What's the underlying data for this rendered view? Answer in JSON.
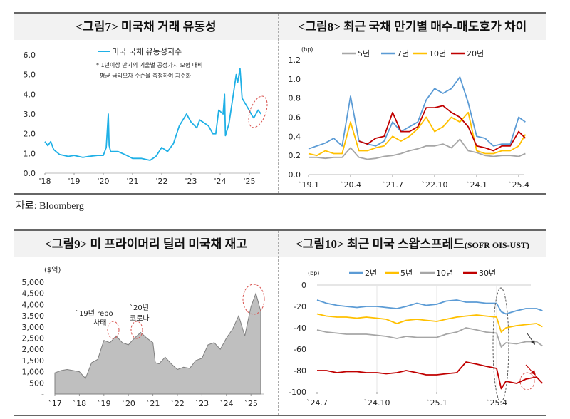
{
  "source": "자료: Bloomberg",
  "chart_data": [
    {
      "id": "fig7",
      "type": "line",
      "title": "<그림7> 미국채 거래 유동성",
      "xlabel": "",
      "ylabel": "",
      "ylim": [
        0,
        6
      ],
      "yticks": [
        "0.0",
        "1.0",
        "2.0",
        "3.0",
        "4.0",
        "5.0",
        "6.0"
      ],
      "xticks": [
        "'18",
        "'19",
        "'20",
        "'21",
        "'22",
        "'23",
        "'24",
        "'25"
      ],
      "legend": "top-center",
      "note": [
        "* 1년이상 만기의 기울별 공정가치 모형 대비",
        "평균 금리오차 수준을 측정하여 지수화"
      ],
      "series": [
        {
          "name": "미국 국채 유동성지수",
          "color": "#1fb0e6",
          "x": [
            2018.0,
            2018.1,
            2018.2,
            2018.3,
            2018.5,
            2018.8,
            2019.0,
            2019.3,
            2019.5,
            2019.8,
            2020.0,
            2020.1,
            2020.17,
            2020.2,
            2020.25,
            2020.5,
            2020.8,
            2021.0,
            2021.3,
            2021.6,
            2021.8,
            2022.0,
            2022.2,
            2022.4,
            2022.6,
            2022.85,
            2023.0,
            2023.2,
            2023.3,
            2023.6,
            2023.75,
            2023.85,
            2023.95,
            2024.1,
            2024.15,
            2024.18,
            2024.3,
            2024.45,
            2024.55,
            2024.6,
            2024.68,
            2024.75,
            2024.95,
            2025.1,
            2025.15,
            2025.3,
            2025.4
          ],
          "y": [
            1.6,
            1.4,
            1.6,
            1.2,
            0.95,
            0.85,
            0.9,
            0.8,
            0.85,
            0.9,
            0.9,
            1.3,
            3.0,
            1.4,
            1.1,
            1.1,
            0.9,
            0.75,
            0.75,
            0.65,
            0.85,
            1.3,
            1.1,
            1.5,
            2.4,
            3.0,
            2.6,
            2.3,
            2.7,
            2.4,
            2.0,
            2.0,
            3.2,
            3.0,
            4.0,
            1.9,
            2.5,
            4.0,
            5.0,
            4.6,
            5.3,
            3.8,
            3.3,
            2.9,
            2.8,
            3.2,
            3.0
          ]
        }
      ]
    },
    {
      "id": "fig8",
      "type": "line",
      "title": "<그림8> 최근 국채 만기별 매수-매도호가 차이",
      "unit": "(bp)",
      "ylim": [
        0,
        1.2
      ],
      "yticks": [
        "0.0",
        "0.2",
        "0.4",
        "0.6",
        "0.8",
        "1.0",
        "1.2"
      ],
      "xticks": [
        "`19.1",
        "`20.4",
        "`21.7",
        "`22.10",
        "`24.1",
        "`25.4"
      ],
      "legend": "top",
      "x": [
        2019.0,
        2019.25,
        2019.5,
        2019.75,
        2020.0,
        2020.25,
        2020.5,
        2020.75,
        2021.0,
        2021.25,
        2021.5,
        2021.75,
        2022.0,
        2022.25,
        2022.5,
        2022.75,
        2023.0,
        2023.25,
        2023.5,
        2023.75,
        2024.0,
        2024.25,
        2024.5,
        2024.75,
        2025.0,
        2025.25,
        2025.45
      ],
      "series": [
        {
          "name": "5년",
          "color": "#a6a6a6",
          "y": [
            0.18,
            0.18,
            0.17,
            0.18,
            0.18,
            0.28,
            0.18,
            0.16,
            0.17,
            0.19,
            0.2,
            0.22,
            0.25,
            0.27,
            0.3,
            0.3,
            0.32,
            0.28,
            0.37,
            0.25,
            0.23,
            0.2,
            0.19,
            0.2,
            0.2,
            0.19,
            0.22
          ]
        },
        {
          "name": "7년",
          "color": "#5b9bd5",
          "y": [
            0.27,
            0.3,
            0.33,
            0.38,
            0.3,
            0.82,
            0.35,
            0.32,
            0.3,
            0.35,
            0.55,
            0.45,
            0.5,
            0.55,
            0.78,
            0.9,
            0.85,
            0.9,
            1.02,
            0.75,
            0.4,
            0.38,
            0.3,
            0.32,
            0.32,
            0.6,
            0.55
          ]
        },
        {
          "name": "10년",
          "color": "#ffc000",
          "y": [
            0.22,
            0.2,
            0.25,
            0.22,
            0.22,
            0.55,
            0.25,
            0.25,
            0.28,
            0.3,
            0.4,
            0.35,
            0.4,
            0.48,
            0.6,
            0.45,
            0.5,
            0.6,
            0.55,
            0.65,
            0.25,
            0.22,
            0.22,
            0.25,
            0.25,
            0.3,
            0.42
          ]
        },
        {
          "name": "20년",
          "color": "#c00000",
          "y": [
            null,
            null,
            null,
            null,
            null,
            null,
            0.35,
            0.32,
            0.38,
            0.4,
            0.65,
            0.45,
            0.45,
            0.5,
            0.7,
            0.7,
            0.72,
            0.65,
            0.6,
            0.5,
            0.3,
            0.28,
            0.25,
            0.3,
            0.3,
            0.45,
            0.38
          ]
        }
      ]
    },
    {
      "id": "fig9",
      "type": "area",
      "title": "<그림9> 미 프라이머리 딜러 미국채 재고",
      "unit": "($억)",
      "ylim": [
        0,
        5000
      ],
      "yticks": [
        "-",
        "500",
        "1,000",
        "1,500",
        "2,000",
        "2,500",
        "3,000",
        "3,500",
        "4,000",
        "4,500",
        "5,000"
      ],
      "xticks": [
        "`17",
        "`18",
        "`19",
        "`20",
        "`21",
        "`22",
        "`23",
        "`24",
        "`25"
      ],
      "annotations": [
        "`19년 repo",
        "사태",
        "`20년",
        "코로나"
      ],
      "series": [
        {
          "color": "#a6a6a6",
          "x": [
            2017.0,
            2017.25,
            2017.5,
            2017.75,
            2018.0,
            2018.25,
            2018.5,
            2018.75,
            2019.0,
            2019.25,
            2019.5,
            2019.75,
            2020.0,
            2020.25,
            2020.5,
            2020.75,
            2021.0,
            2021.1,
            2021.25,
            2021.5,
            2021.75,
            2022.0,
            2022.25,
            2022.5,
            2022.75,
            2023.0,
            2023.25,
            2023.5,
            2023.75,
            2024.0,
            2024.25,
            2024.5,
            2024.75,
            2025.0,
            2025.2,
            2025.4
          ],
          "y": [
            950,
            1050,
            1100,
            1050,
            1000,
            700,
            1400,
            1550,
            2400,
            2300,
            2600,
            2300,
            2200,
            2500,
            2750,
            2500,
            2300,
            1400,
            1350,
            1650,
            1350,
            1100,
            1200,
            1150,
            1500,
            1600,
            2200,
            2300,
            2000,
            2500,
            2900,
            3500,
            2600,
            3900,
            4500,
            3700
          ]
        }
      ]
    },
    {
      "id": "fig10",
      "type": "line",
      "title": "<그림10> 최근 미국 스왑스프레드",
      "title_suffix": "(SOFR OIS-UST)",
      "unit": "(bp)",
      "ylim": [
        -100,
        0
      ],
      "yticks": [
        "-100",
        "-80",
        "-60",
        "-40",
        "-20",
        "0"
      ],
      "xticks": [
        "`24.7",
        "`24.10",
        "`25.1",
        "`25.4"
      ],
      "legend": "top",
      "x": [
        "2024-07-01",
        "2024-07-15",
        "2024-08-01",
        "2024-08-15",
        "2024-09-01",
        "2024-09-15",
        "2024-10-01",
        "2024-10-15",
        "2024-11-01",
        "2024-11-15",
        "2024-12-01",
        "2024-12-15",
        "2025-01-01",
        "2025-01-15",
        "2025-02-01",
        "2025-02-15",
        "2025-03-01",
        "2025-03-15",
        "2025-04-01",
        "2025-04-08",
        "2025-04-15",
        "2025-05-01",
        "2025-05-15",
        "2025-06-01",
        "2025-06-10"
      ],
      "series": [
        {
          "name": "2년",
          "color": "#5b9bd5",
          "y": [
            -14,
            -17,
            -19,
            -20,
            -21,
            -20,
            -20,
            -21,
            -22,
            -20,
            -17,
            -19,
            -18,
            -15,
            -14,
            -16,
            -16,
            -17,
            -17,
            -25,
            -27,
            -24,
            -22,
            -22,
            -24
          ]
        },
        {
          "name": "5년",
          "color": "#ffc000",
          "y": [
            -27,
            -29,
            -30,
            -30,
            -31,
            -30,
            -31,
            -32,
            -36,
            -33,
            -32,
            -33,
            -34,
            -32,
            -30,
            -29,
            -28,
            -29,
            -30,
            -44,
            -40,
            -38,
            -37,
            -36,
            -39
          ]
        },
        {
          "name": "10년",
          "color": "#a6a6a6",
          "y": [
            -42,
            -44,
            -45,
            -46,
            -46,
            -46,
            -47,
            -48,
            -50,
            -48,
            -49,
            -49,
            -49,
            -46,
            -44,
            -40,
            -42,
            -44,
            -45,
            -58,
            -54,
            -55,
            -53,
            -53,
            -57
          ]
        },
        {
          "name": "30년",
          "color": "#c00000",
          "y": [
            -80,
            -80,
            -82,
            -81,
            -81,
            -82,
            -82,
            -83,
            -82,
            -80,
            -82,
            -84,
            -84,
            -83,
            -82,
            -72,
            -74,
            -76,
            -78,
            -97,
            -90,
            -92,
            -88,
            -86,
            -92
          ]
        }
      ]
    }
  ]
}
